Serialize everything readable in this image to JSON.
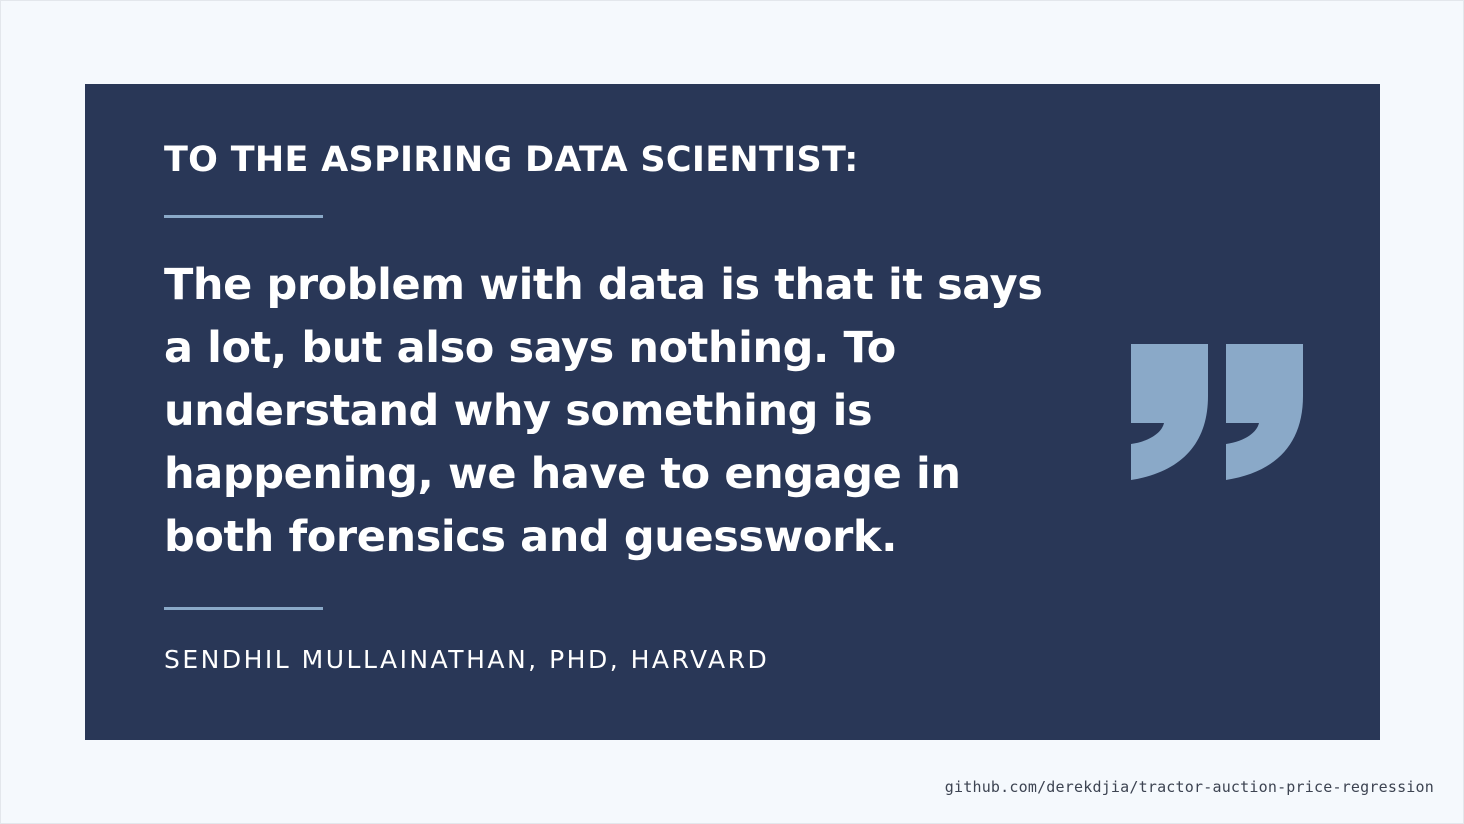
{
  "card": {
    "heading": "TO THE ASPIRING DATA SCIENTIST:",
    "quote": "The problem with data is that it says a lot, but also says nothing. To understand why something is happening, we have to engage in both forensics and guesswork.",
    "attribution": "SENDHIL MULLAINATHAN, PHD, HARVARD",
    "quote_icon": "closing-quote-icon"
  },
  "footer": {
    "source": "github.com/derekdjia/tractor-auction-price-regression"
  },
  "colors": {
    "page_background": "#f5f9fd",
    "card_background": "#293757",
    "text": "#ffffff",
    "accent": "#8aa9c8",
    "footer_text": "#3d4452"
  }
}
